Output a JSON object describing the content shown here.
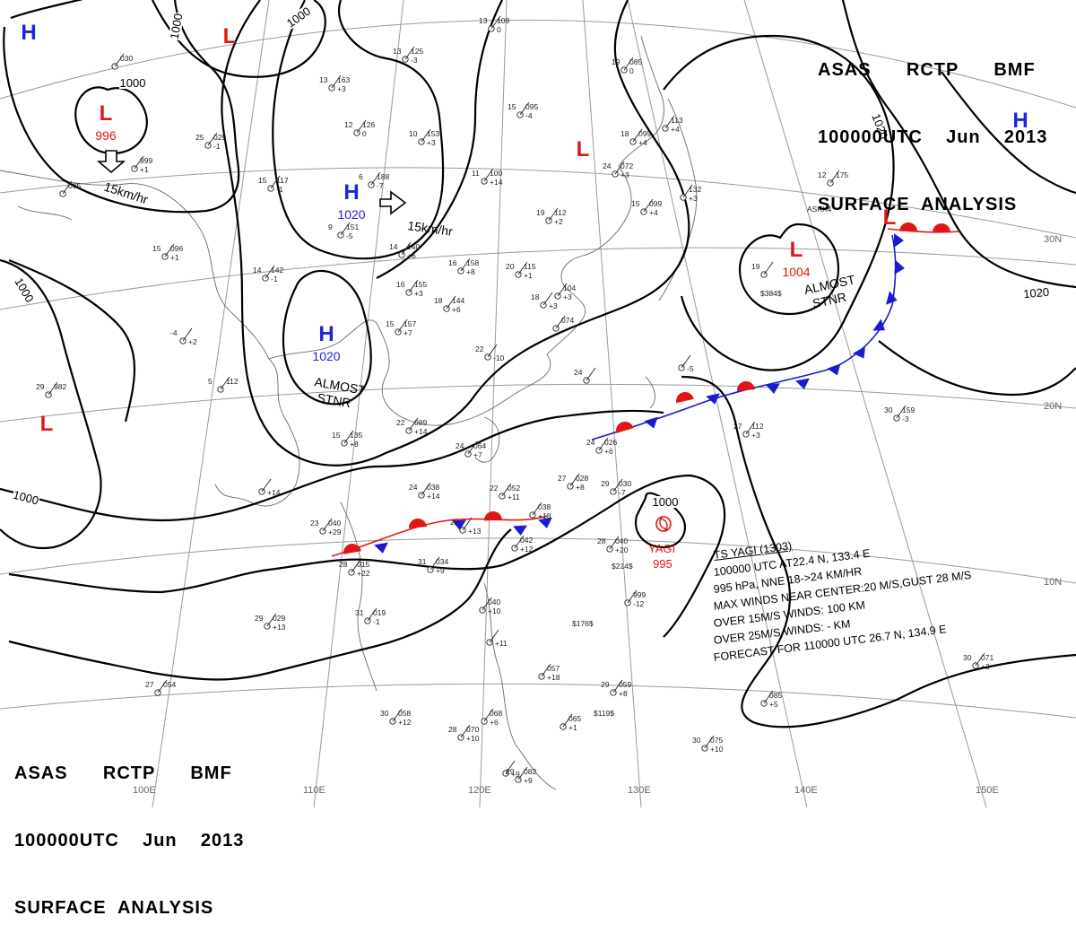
{
  "header": {
    "line1": [
      "ASAS",
      "RCTP",
      "BMF"
    ],
    "line2": [
      "100000UTC",
      "Jun",
      "2013"
    ],
    "line3": "SURFACE  ANALYSIS"
  },
  "colors": {
    "background": "#ffffff",
    "isobar": "#000000",
    "grid": "#9a9a9a",
    "coast": "#6b6b6b",
    "high": "#1f24d8",
    "low": "#e01515",
    "warm_front": "#e01515",
    "cold_front": "#1a1ad0"
  },
  "pressure_centers": [
    {
      "type": "H",
      "value": "",
      "color": "blue"
    },
    {
      "type": "L",
      "value": "",
      "color": "red"
    },
    {
      "type": "L",
      "value": "996",
      "color": "red"
    },
    {
      "type": "H",
      "value": "1020",
      "color": "blue"
    },
    {
      "type": "H",
      "value": "1020",
      "color": "blue"
    },
    {
      "type": "L",
      "value": "",
      "color": "red"
    },
    {
      "type": "L",
      "value": "1004",
      "color": "red"
    },
    {
      "type": "H",
      "value": "",
      "color": "blue"
    },
    {
      "type": "L",
      "value": "",
      "color": "red"
    },
    {
      "type": "L",
      "value": "",
      "color": "red"
    }
  ],
  "isobar_labels": [
    "1000",
    "1000",
    "1000",
    "1000",
    "1000",
    "1020",
    "1020",
    "1000"
  ],
  "motion_labels": [
    "15km/hr",
    "15km/hr"
  ],
  "stationary_labels": [
    {
      "line1": "ALMOST",
      "line2": "STNR"
    },
    {
      "line1": "ALMOST",
      "line2": "STNR"
    }
  ],
  "storm": {
    "name": "YAGI",
    "pressure": "995",
    "isobar": "1000",
    "bulletin": [
      "TS  YAGI  (1303)",
      "100000 UTC  AT22.4 N, 133.4 E",
      "995 hPa, NNE  18->24 KM/HR",
      "MAX WINDS NEAR CENTER:20 M/S,GUST 28 M/S",
      "OVER 15M/S WINDS: 100 KM",
      "OVER 25M/S WINDS: - KM",
      "FORECAST FOR 110000 UTC 26.7 N, 134.9 E"
    ]
  },
  "longitude_labels": [
    "100E",
    "110E",
    "120E",
    "130E",
    "140E",
    "150E"
  ],
  "latitude_labels": [
    "30N",
    "20N",
    "10N"
  ],
  "stations": [
    {
      "t": "13",
      "p": "109",
      "tr": "0"
    },
    {
      "t": "",
      "p": "030",
      "tr": ""
    },
    {
      "t": "13",
      "p": "163",
      "tr": "+3"
    },
    {
      "t": "13",
      "p": "125",
      "tr": "-3"
    },
    {
      "t": "15",
      "p": "095",
      "tr": "-4"
    },
    {
      "t": "12",
      "p": "126",
      "tr": "0"
    },
    {
      "t": "10",
      "p": "153",
      "tr": "+3"
    },
    {
      "t": "25",
      "p": "029",
      "tr": "-1"
    },
    {
      "t": "",
      "p": "999",
      "tr": "+1"
    },
    {
      "t": "",
      "p": "065",
      "tr": ""
    },
    {
      "t": "15",
      "p": "117",
      "tr": "-1"
    },
    {
      "t": "6",
      "p": "188",
      "tr": "-7"
    },
    {
      "t": "11",
      "p": "100",
      "tr": "+14"
    },
    {
      "t": "19",
      "p": "085",
      "tr": "0"
    },
    {
      "t": "18",
      "p": "099",
      "tr": "+4"
    },
    {
      "t": "",
      "p": "113",
      "tr": "+4"
    },
    {
      "t": "24",
      "p": "072",
      "tr": "+3"
    },
    {
      "t": "15",
      "p": "099",
      "tr": "+4"
    },
    {
      "t": "",
      "p": "132",
      "tr": "+3"
    },
    {
      "t": "12",
      "p": "175",
      "tr": ""
    },
    {
      "t": "9",
      "p": "151",
      "tr": "-5"
    },
    {
      "t": "19",
      "p": "112",
      "tr": "+2"
    },
    {
      "t": "15",
      "p": "096",
      "tr": "+1"
    },
    {
      "t": "14",
      "p": "140",
      "tr": "+6"
    },
    {
      "t": "16",
      "p": "158",
      "tr": "+8"
    },
    {
      "t": "20",
      "p": "115",
      "tr": "+1"
    },
    {
      "t": "14",
      "p": "142",
      "tr": "-1"
    },
    {
      "t": "16",
      "p": "155",
      "tr": "+3"
    },
    {
      "t": "18",
      "p": "144",
      "tr": "+6"
    },
    {
      "t": "18",
      "p": "",
      "tr": "+3"
    },
    {
      "t": "",
      "p": "104",
      "tr": "+3"
    },
    {
      "t": "19",
      "p": "",
      "tr": ""
    },
    {
      "t": "15",
      "p": "157",
      "tr": "+7"
    },
    {
      "t": "",
      "p": "074",
      "tr": ""
    },
    {
      "t": "-4",
      "p": "",
      "tr": "+2"
    },
    {
      "t": "22",
      "p": "",
      "tr": "-10"
    },
    {
      "t": "",
      "p": "",
      "tr": "-5"
    },
    {
      "t": "5",
      "p": "112",
      "tr": ""
    },
    {
      "t": "29",
      "p": "982",
      "tr": ""
    },
    {
      "t": "24",
      "p": "",
      "tr": ""
    },
    {
      "t": "22",
      "p": "089",
      "tr": "+14"
    },
    {
      "t": "15",
      "p": "135",
      "tr": "+8"
    },
    {
      "t": "24",
      "p": "064",
      "tr": "+7"
    },
    {
      "t": "24",
      "p": "026",
      "tr": "+6"
    },
    {
      "t": "27",
      "p": "112",
      "tr": "+3"
    },
    {
      "t": "30",
      "p": "159",
      "tr": "-3"
    },
    {
      "t": "",
      "p": "",
      "tr": "+14"
    },
    {
      "t": "24",
      "p": "038",
      "tr": "+14"
    },
    {
      "t": "22",
      "p": "052",
      "tr": "+11"
    },
    {
      "t": "27",
      "p": "028",
      "tr": "+8"
    },
    {
      "t": "29",
      "p": "030",
      "tr": "-7"
    },
    {
      "t": "23",
      "p": "040",
      "tr": "+29"
    },
    {
      "t": "",
      "p": "038",
      "tr": "+18"
    },
    {
      "t": "28",
      "p": "",
      "tr": "+13"
    },
    {
      "t": "",
      "p": "042",
      "tr": "+12"
    },
    {
      "t": "28",
      "p": "040",
      "tr": "+20"
    },
    {
      "t": "28",
      "p": "015",
      "tr": "+22"
    },
    {
      "t": "31",
      "p": "034",
      "tr": "+9"
    },
    {
      "t": "",
      "p": "999",
      "tr": "-12"
    },
    {
      "t": "",
      "p": "040",
      "tr": "+10"
    },
    {
      "t": "31",
      "p": "019",
      "tr": "-1"
    },
    {
      "t": "29",
      "p": "029",
      "tr": "+13"
    },
    {
      "t": "",
      "p": "",
      "tr": "+11"
    },
    {
      "t": "",
      "p": "057",
      "tr": "+18"
    },
    {
      "t": "29",
      "p": "059",
      "tr": "+8"
    },
    {
      "t": "27",
      "p": "054",
      "tr": ""
    },
    {
      "t": "30",
      "p": "058",
      "tr": "+12"
    },
    {
      "t": "28",
      "p": "070",
      "tr": "+10"
    },
    {
      "t": "",
      "p": "068",
      "tr": "+6"
    },
    {
      "t": "",
      "p": "065",
      "tr": "+1"
    },
    {
      "t": "",
      "p": "",
      "tr": "+9"
    },
    {
      "t": "29",
      "p": "082",
      "tr": "+9"
    },
    {
      "t": "",
      "p": "085",
      "tr": "+5"
    },
    {
      "t": "30",
      "p": "075",
      "tr": "+10"
    },
    {
      "t": "30",
      "p": "071",
      "tr": "+3"
    }
  ],
  "station_notes": [
    "$214$",
    "$176$",
    "$119$",
    "$384$",
    "ASKX4"
  ]
}
